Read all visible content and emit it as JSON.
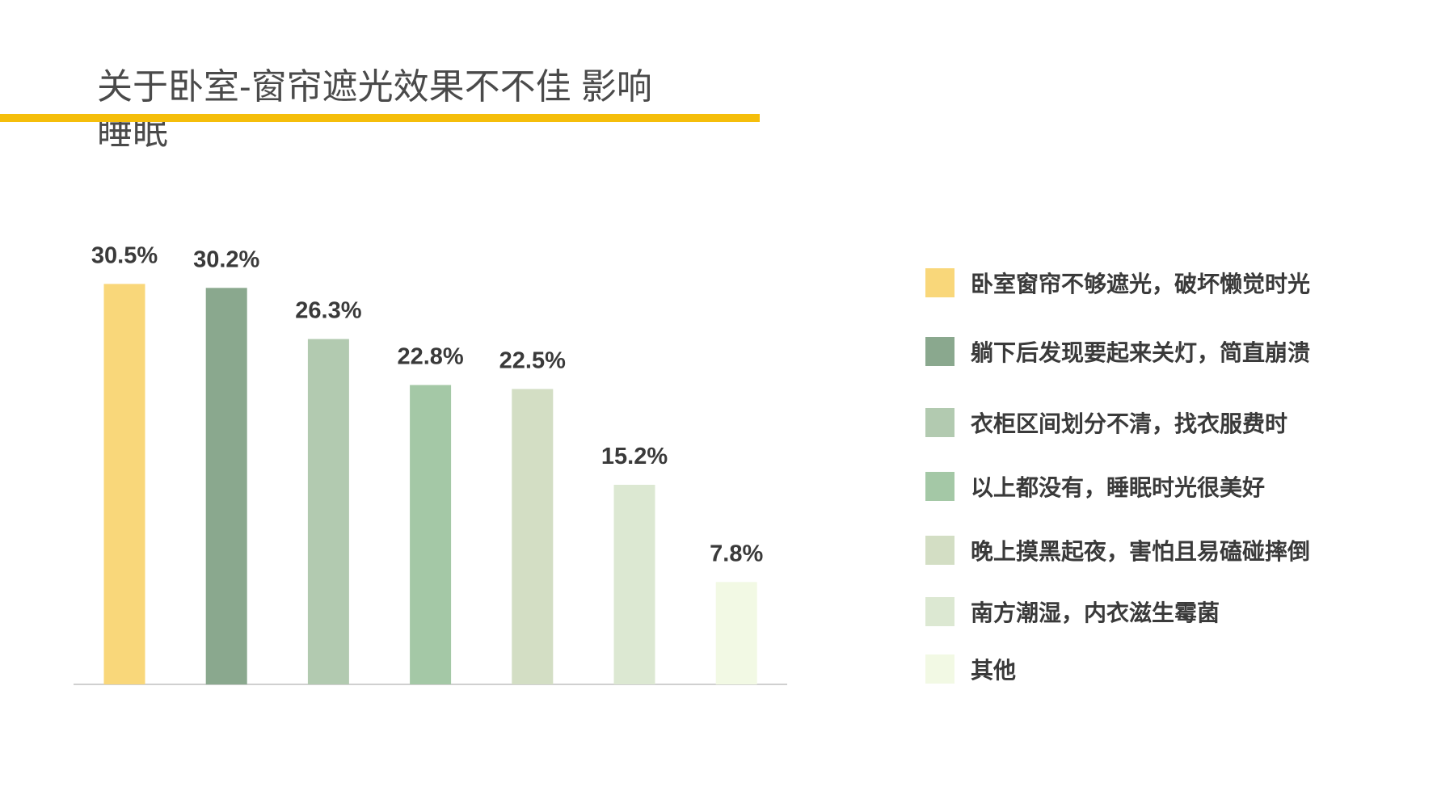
{
  "title": {
    "line1": "关于卧室-窗帘遮光效果不不佳 影响",
    "line2": "睡眠"
  },
  "colors": {
    "accent": "#F5BE0B",
    "title_text": "#4a4a4a"
  },
  "chart_data": {
    "type": "bar",
    "categories": [
      "卧室窗帘不够遮光，破坏懒觉时光",
      "躺下后发现要起来关灯，简直崩溃",
      "衣柜区间划分不清，找衣服费时",
      "以上都没有，睡眠时光很美好",
      "晚上摸黑起夜，害怕且易磕碰摔倒",
      "南方潮湿，内衣滋生霉菌",
      "其他"
    ],
    "values": [
      30.5,
      30.2,
      26.3,
      22.8,
      22.5,
      15.2,
      7.8
    ],
    "unit": "%",
    "colors": [
      "#F9D77A",
      "#8AA88E",
      "#B2CAB0",
      "#A4C8A6",
      "#D3DEC4",
      "#DCE8D2",
      "#F2F9E4"
    ],
    "legend": "right",
    "grid": false
  }
}
